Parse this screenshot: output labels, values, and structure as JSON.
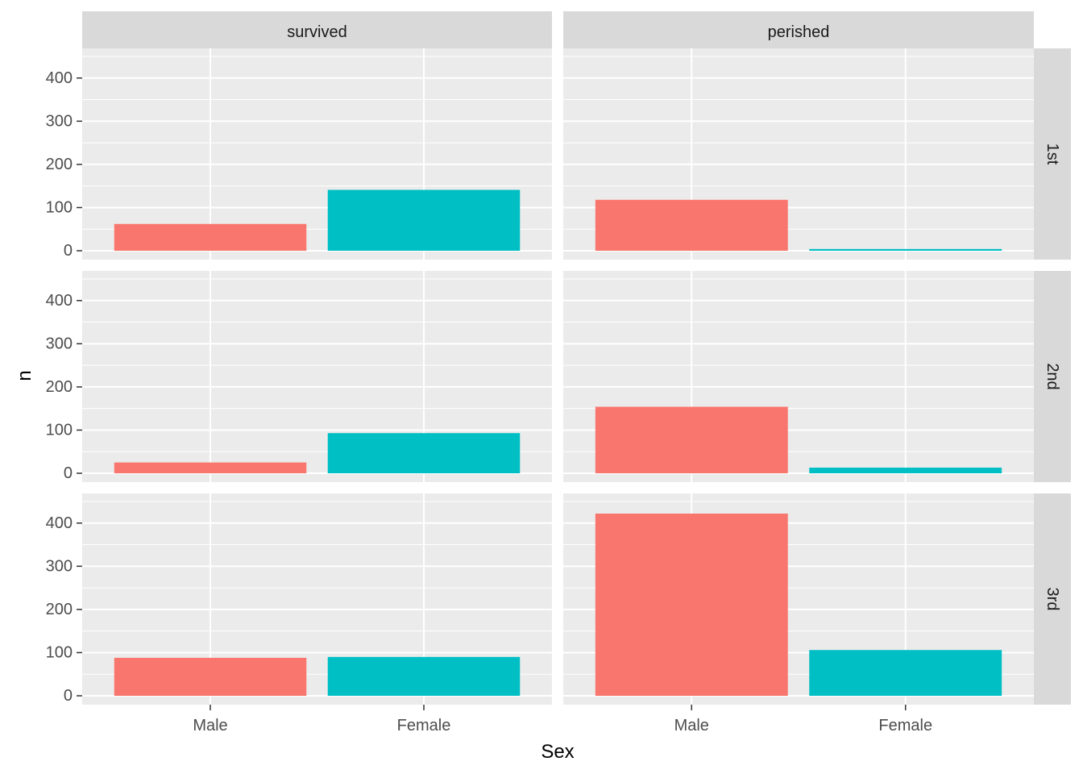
{
  "chart_data": {
    "type": "bar",
    "facet_columns": [
      "survived",
      "perished"
    ],
    "facet_rows": [
      "1st",
      "2nd",
      "3rd"
    ],
    "categories": [
      "Male",
      "Female"
    ],
    "xlabel": "Sex",
    "ylabel": "n",
    "ylim": [
      0,
      450
    ],
    "yticks": [
      0,
      100,
      200,
      300,
      400
    ],
    "yticks_labels": [
      "0",
      "100",
      "200",
      "300",
      "400"
    ],
    "grid": true,
    "legend": "none",
    "colors": {
      "Male": "#F8766D",
      "Female": "#00BFC4"
    },
    "panels": [
      {
        "row": "1st",
        "col": "survived",
        "values": [
          62,
          141
        ]
      },
      {
        "row": "1st",
        "col": "perished",
        "values": [
          118,
          4
        ]
      },
      {
        "row": "2nd",
        "col": "survived",
        "values": [
          25,
          93
        ]
      },
      {
        "row": "2nd",
        "col": "perished",
        "values": [
          154,
          13
        ]
      },
      {
        "row": "3rd",
        "col": "survived",
        "values": [
          88,
          90
        ]
      },
      {
        "row": "3rd",
        "col": "perished",
        "values": [
          422,
          106
        ]
      }
    ]
  }
}
